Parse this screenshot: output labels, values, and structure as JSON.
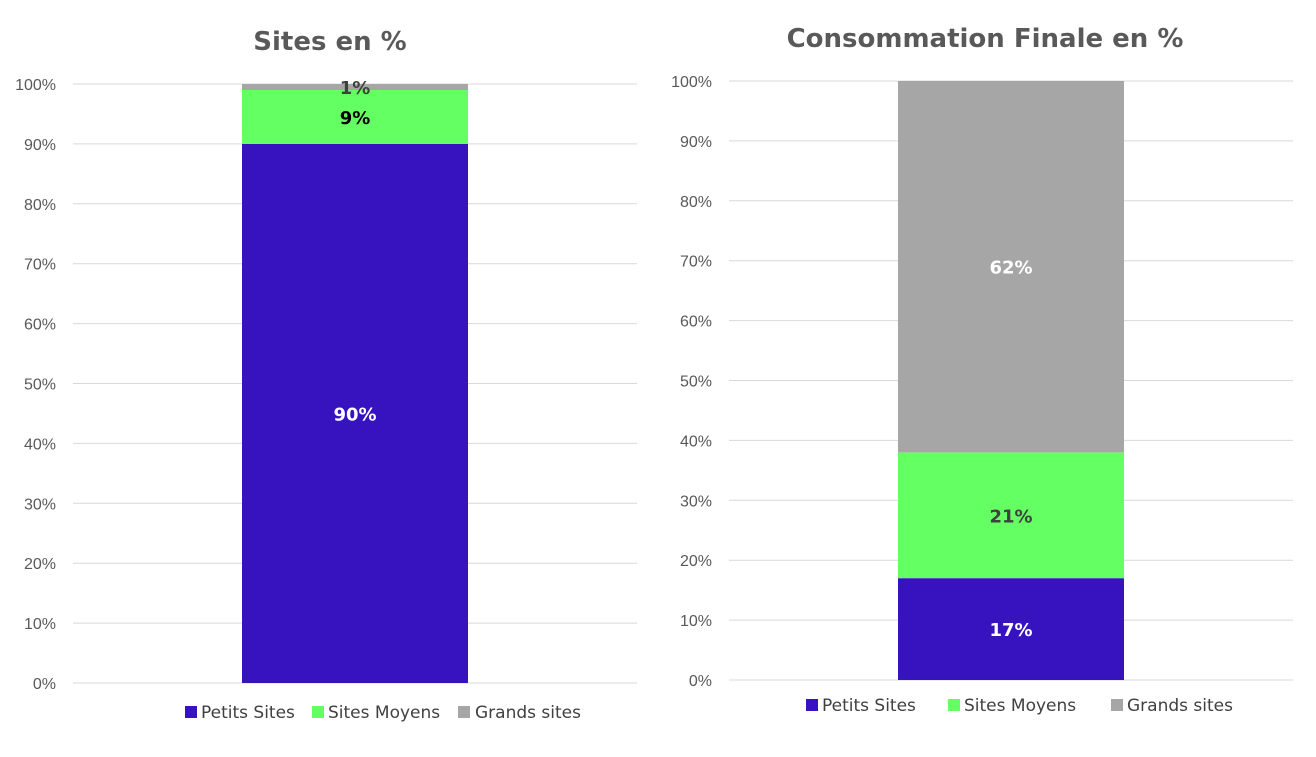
{
  "chart_data": [
    {
      "type": "bar",
      "stacked": true,
      "title": "Sites en %",
      "categories": [
        ""
      ],
      "series": [
        {
          "name": "Petits Sites",
          "values": [
            90
          ],
          "label": "90%",
          "label_color": "#ffffff"
        },
        {
          "name": "Sites Moyens",
          "values": [
            9
          ],
          "label": "9%",
          "label_color": "#000000"
        },
        {
          "name": "Grands sites",
          "values": [
            1
          ],
          "label": "1%",
          "label_color": "#404040"
        }
      ],
      "ylim": [
        0,
        100
      ],
      "yticks": [
        "0%",
        "10%",
        "20%",
        "30%",
        "40%",
        "50%",
        "60%",
        "70%",
        "80%",
        "90%",
        "100%"
      ],
      "grid": true,
      "legend_position": "bottom"
    },
    {
      "type": "bar",
      "stacked": true,
      "title": "Consommation Finale en %",
      "categories": [
        ""
      ],
      "series": [
        {
          "name": "Petits Sites",
          "values": [
            17
          ],
          "label": "17%",
          "label_color": "#ffffff"
        },
        {
          "name": "Sites Moyens",
          "values": [
            21
          ],
          "label": "21%",
          "label_color": "#404040"
        },
        {
          "name": "Grands sites",
          "values": [
            62
          ],
          "label": "62%",
          "label_color": "#ffffff"
        }
      ],
      "ylim": [
        0,
        100
      ],
      "yticks": [
        "0%",
        "10%",
        "20%",
        "30%",
        "40%",
        "50%",
        "60%",
        "70%",
        "80%",
        "90%",
        "100%"
      ],
      "grid": true,
      "legend_position": "bottom"
    }
  ],
  "colors": {
    "Petits Sites": "#3713c0",
    "Sites Moyens": "#63ff63",
    "Grands sites": "#a6a6a6"
  }
}
